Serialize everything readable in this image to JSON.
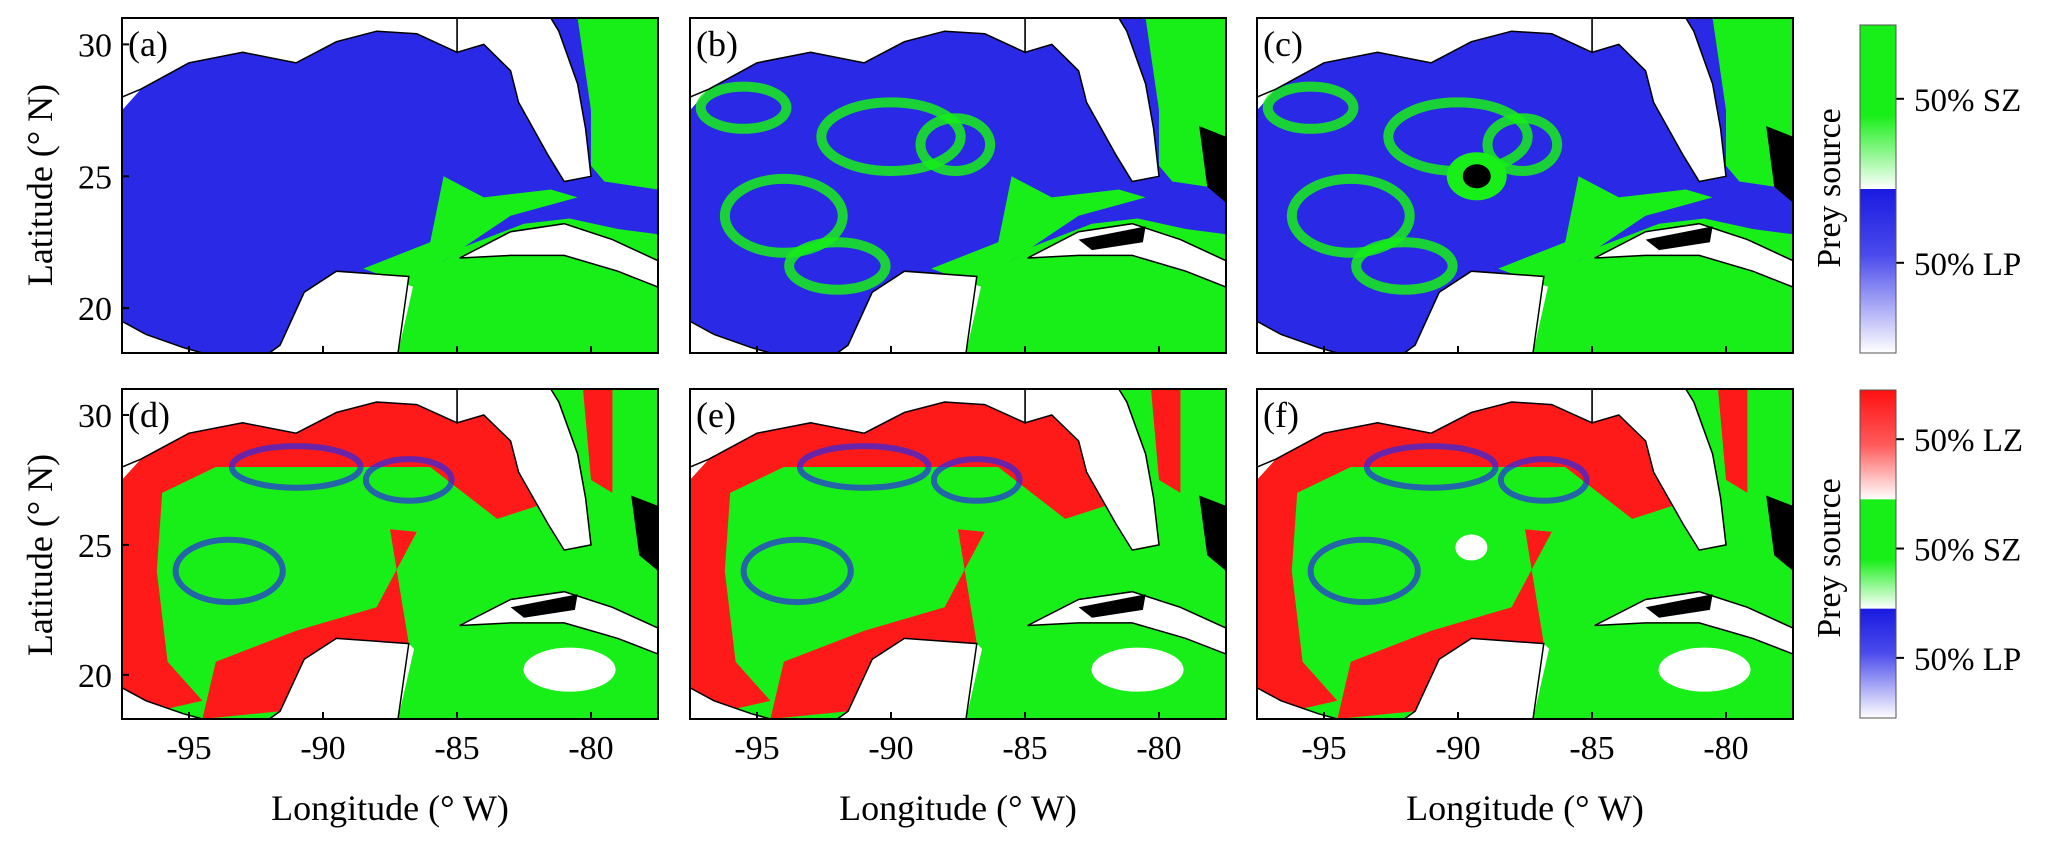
{
  "figure": {
    "xlabel": "Longitude (° W)",
    "ylabel": "Latitude (° N)",
    "colorbar_label": "Prey source"
  },
  "colors": {
    "SZ": "#18ee18",
    "LP": "#2a2ae6",
    "LZ": "#ff1a1a",
    "land": "#ffffff",
    "black_zero": "#000000"
  },
  "chart_data": [
    {
      "type": "heatmap",
      "panel": "(a)",
      "scheme": "two-source",
      "xlim": [
        -97.5,
        -77.5
      ],
      "ylim": [
        18.3,
        31.0
      ],
      "xticks": [
        -95,
        -90,
        -85,
        -80
      ],
      "yticks": [
        20,
        25,
        30
      ],
      "description_values": {
        "dominant": "LP",
        "secondary": "SZ"
      }
    },
    {
      "type": "heatmap",
      "panel": "(b)",
      "scheme": "two-source",
      "xlim": [
        -97.5,
        -77.5
      ],
      "ylim": [
        18.3,
        31.0
      ],
      "xticks": [
        -95,
        -90,
        -85,
        -80
      ],
      "yticks": [
        20,
        25,
        30
      ],
      "description_values": {
        "dominant": "LP",
        "secondary": "SZ"
      }
    },
    {
      "type": "heatmap",
      "panel": "(c)",
      "scheme": "two-source",
      "xlim": [
        -97.5,
        -77.5
      ],
      "ylim": [
        18.3,
        31.0
      ],
      "xticks": [
        -95,
        -90,
        -85,
        -80
      ],
      "yticks": [
        20,
        25,
        30
      ],
      "description_values": {
        "dominant": "LP",
        "secondary": "SZ"
      }
    },
    {
      "type": "heatmap",
      "panel": "(d)",
      "scheme": "three-source",
      "xlim": [
        -97.5,
        -77.5
      ],
      "ylim": [
        18.3,
        31.0
      ],
      "xticks": [
        -95,
        -90,
        -85,
        -80
      ],
      "yticks": [
        20,
        25,
        30
      ],
      "description_values": {
        "dominant": "SZ",
        "secondary": "LZ"
      }
    },
    {
      "type": "heatmap",
      "panel": "(e)",
      "scheme": "three-source",
      "xlim": [
        -97.5,
        -77.5
      ],
      "ylim": [
        18.3,
        31.0
      ],
      "xticks": [
        -95,
        -90,
        -85,
        -80
      ],
      "yticks": [
        20,
        25,
        30
      ],
      "description_values": {
        "dominant": "SZ",
        "secondary": "LZ"
      }
    },
    {
      "type": "heatmap",
      "panel": "(f)",
      "scheme": "three-source",
      "xlim": [
        -97.5,
        -77.5
      ],
      "ylim": [
        18.3,
        31.0
      ],
      "xticks": [
        -95,
        -90,
        -85,
        -80
      ],
      "yticks": [
        20,
        25,
        30
      ],
      "description_values": {
        "dominant": "SZ",
        "secondary": "LZ"
      }
    }
  ],
  "colorbars": [
    {
      "name": "top",
      "segments": [
        {
          "source": "SZ",
          "label": "50% SZ"
        },
        {
          "source": "LP",
          "label": "50% LP"
        }
      ]
    },
    {
      "name": "bottom",
      "segments": [
        {
          "source": "LZ",
          "label": "50% LZ"
        },
        {
          "source": "SZ",
          "label": "50% SZ"
        },
        {
          "source": "LP",
          "label": "50% LP"
        }
      ]
    }
  ]
}
